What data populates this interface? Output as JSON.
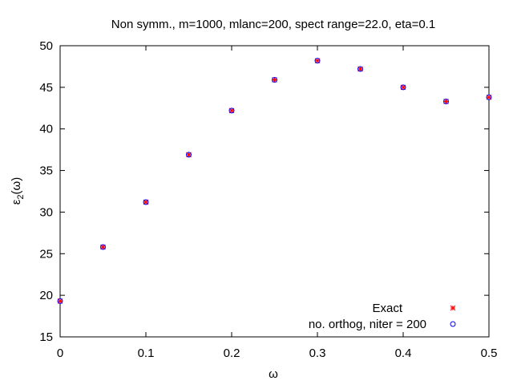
{
  "chart_data": {
    "type": "scatter",
    "title": "Non symm., m=1000, mlanc=200, spect range=22.0, eta=0.1",
    "xlabel": "ω",
    "ylabel_base": "ε",
    "ylabel_sub": "2",
    "ylabel_tail": "(ω)",
    "xlim": [
      0,
      0.5
    ],
    "ylim": [
      15,
      50
    ],
    "xticks": [
      "0",
      "0.1",
      "0.2",
      "0.3",
      "0.4",
      "0.5"
    ],
    "yticks": [
      "15",
      "20",
      "25",
      "30",
      "35",
      "40",
      "45",
      "50"
    ],
    "legend_position": "bottom-right",
    "series": [
      {
        "name": "Exact",
        "color": "#ff0000",
        "marker": "asterisk",
        "x": [
          0,
          0.05,
          0.1,
          0.15,
          0.2,
          0.25,
          0.3,
          0.35,
          0.4,
          0.45,
          0.5
        ],
        "y": [
          19.3,
          25.8,
          31.2,
          36.9,
          42.2,
          45.9,
          48.2,
          47.2,
          45.0,
          43.3,
          43.8
        ]
      },
      {
        "name": "no. orthog, niter = 200",
        "color": "#0000ff",
        "marker": "circle",
        "x": [
          0,
          0.05,
          0.1,
          0.15,
          0.2,
          0.25,
          0.3,
          0.35,
          0.4,
          0.45,
          0.5
        ],
        "y": [
          19.3,
          25.8,
          31.2,
          36.9,
          42.2,
          45.9,
          48.2,
          47.2,
          45.0,
          43.3,
          43.8
        ]
      }
    ]
  }
}
